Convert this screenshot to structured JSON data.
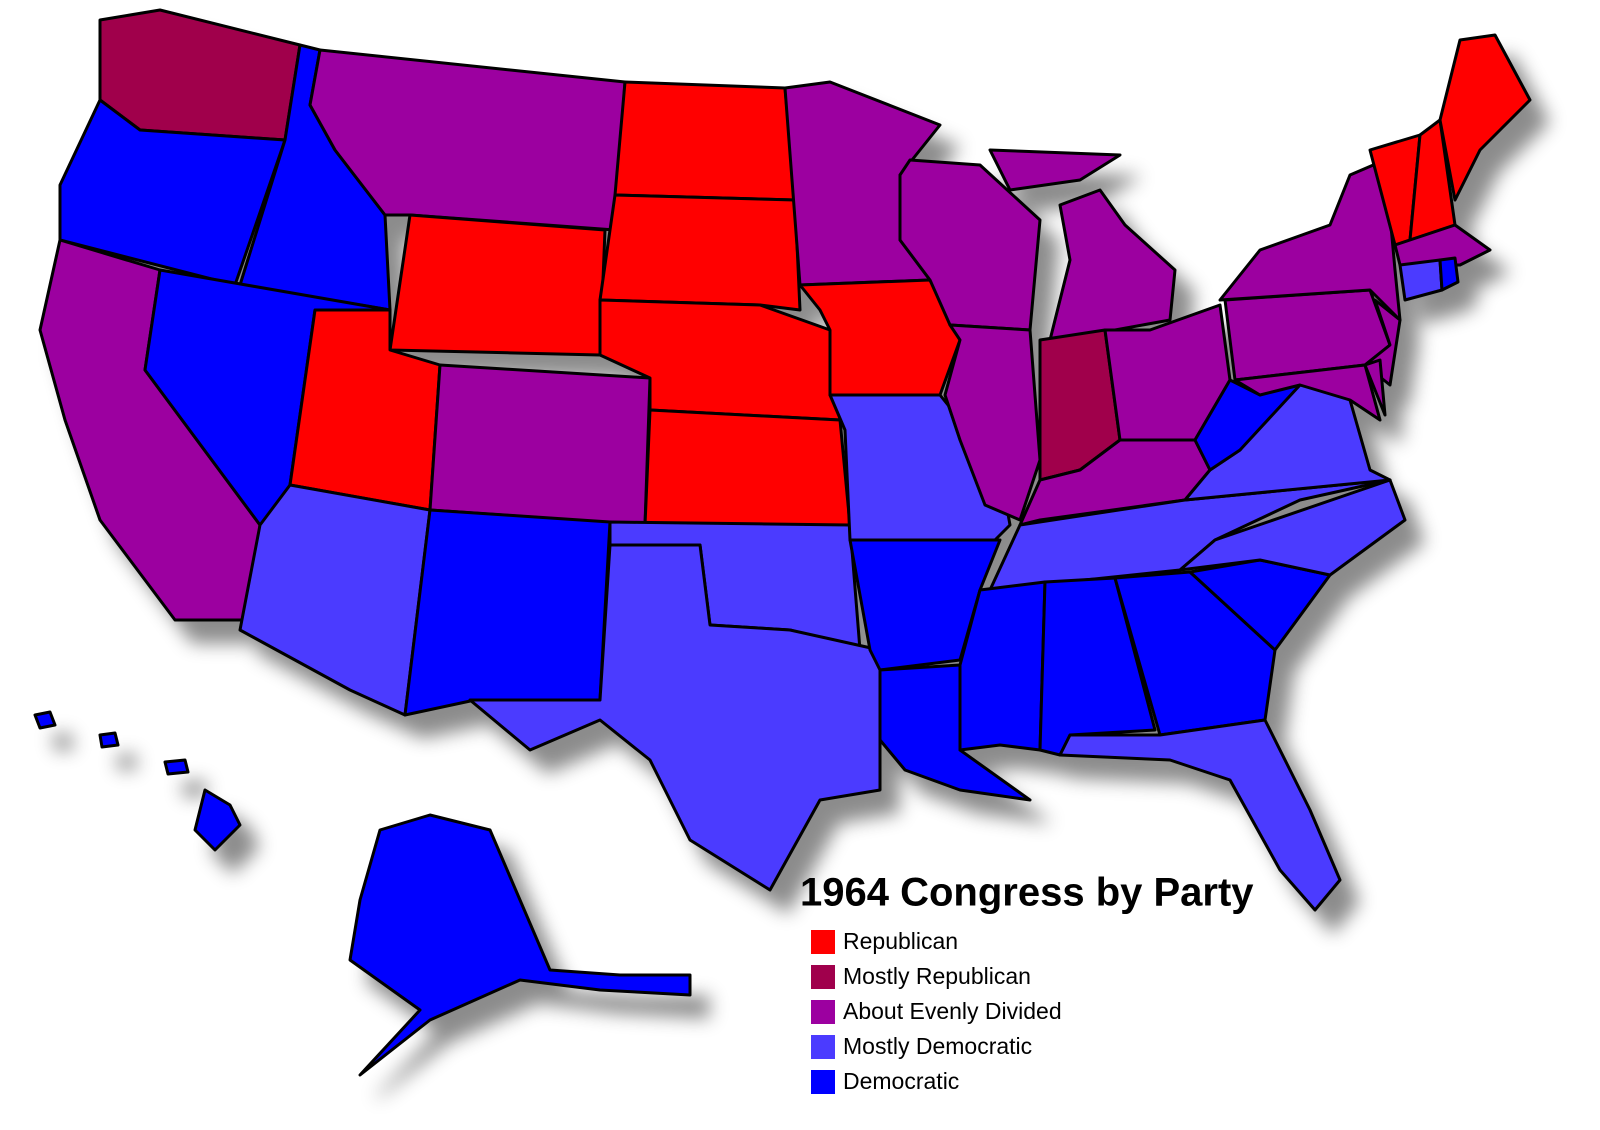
{
  "map": {
    "title": "1964 Congress by Party",
    "legend": [
      {
        "label": "Republican",
        "color": "#ff0000"
      },
      {
        "label": "Mostly Republican",
        "color": "#a0004c"
      },
      {
        "label": "About Evenly Divided",
        "color": "#9c00a0"
      },
      {
        "label": "Mostly Democratic",
        "color": "#4b3bff"
      },
      {
        "label": "Democratic",
        "color": "#0000ff"
      }
    ]
  }
}
